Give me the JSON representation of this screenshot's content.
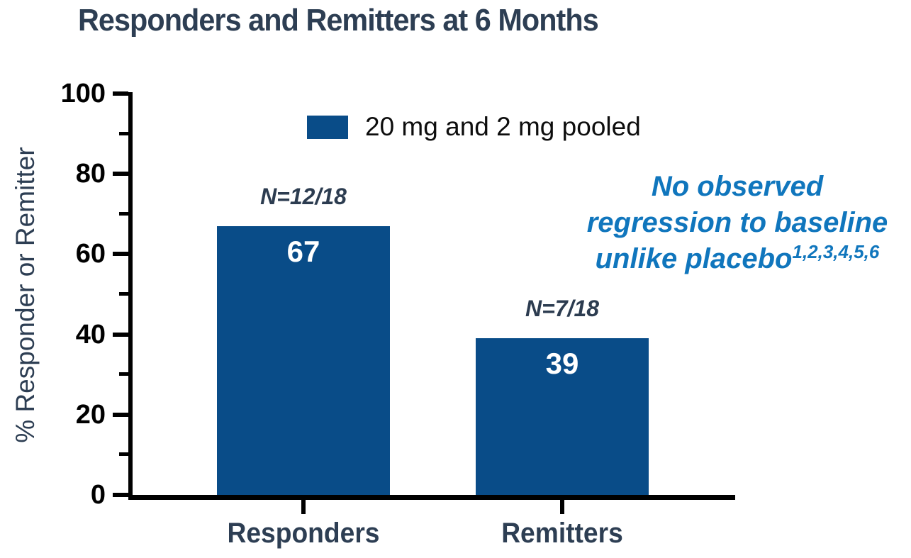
{
  "title": "Responders and Remitters at 6 Months",
  "legend": {
    "label": "20 mg and 2 mg pooled"
  },
  "annotation": {
    "line1": "No observed",
    "line2": "regression to baseline",
    "line3": "unlike placebo",
    "superscript": "1,2,3,4,5,6"
  },
  "y_axis": {
    "label": "% Responder or Remitter"
  },
  "chart_data": {
    "type": "bar",
    "title": "Responders and Remitters at 6 Months",
    "categories": [
      "Responders",
      "Remitters"
    ],
    "values": [
      67,
      39
    ],
    "value_labels": [
      "67",
      "39"
    ],
    "n_annotations": [
      "N=12/18",
      "N=7/18"
    ],
    "series": [
      {
        "name": "20 mg and 2 mg pooled",
        "values": [
          67,
          39
        ]
      }
    ],
    "xlabel": "",
    "ylabel": "% Responder or Remitter",
    "ylim": [
      0,
      100
    ],
    "y_major_ticks": [
      0,
      20,
      40,
      60,
      80,
      100
    ],
    "y_minor_ticks": [
      10,
      30,
      50,
      70,
      90
    ],
    "grid": false,
    "legend_position": "top-center",
    "annotation_text": "No observed regression to baseline unlike placebo 1,2,3,4,5,6"
  },
  "colors": {
    "bar": "#094c88",
    "heading_text": "#2d3e53",
    "annotation_blue": "#1076bd",
    "axis": "#000000",
    "value_label": "#ffffff",
    "legend_text": "#0d0d0d"
  }
}
